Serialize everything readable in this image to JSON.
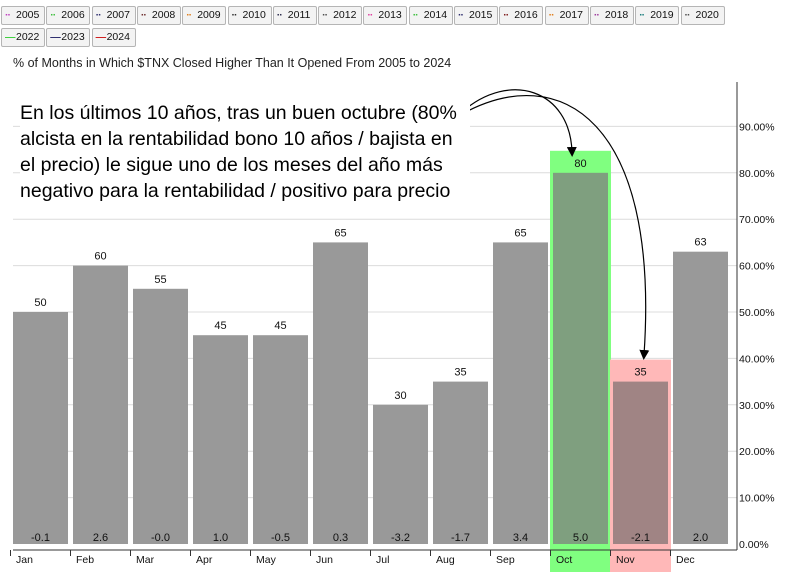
{
  "legend": [
    {
      "label": "2005",
      "color": "#c040c0"
    },
    {
      "label": "2006",
      "color": "#40c040"
    },
    {
      "label": "2007",
      "color": "#303070"
    },
    {
      "label": "2008",
      "color": "#703030"
    },
    {
      "label": "2009",
      "color": "#e08020"
    },
    {
      "label": "2010",
      "color": "#303030"
    },
    {
      "label": "2011",
      "color": "#303050"
    },
    {
      "label": "2012",
      "color": "#505050"
    },
    {
      "label": "2013",
      "color": "#e040a0"
    },
    {
      "label": "2014",
      "color": "#40c040"
    },
    {
      "label": "2015",
      "color": "#303070"
    },
    {
      "label": "2016",
      "color": "#802020"
    },
    {
      "label": "2017",
      "color": "#e08020"
    },
    {
      "label": "2018",
      "color": "#a040a0"
    },
    {
      "label": "2019",
      "color": "#208080"
    },
    {
      "label": "2020",
      "color": "#505050"
    },
    {
      "label": "2021",
      "color": "#c000c0"
    },
    {
      "label": "2022",
      "color": "#40d040"
    },
    {
      "label": "2023",
      "color": "#303070"
    },
    {
      "label": "2024",
      "color": "#d02020"
    }
  ],
  "annotation": "En los últimos 10 años, tras un buen octubre (80% alcista en la rentabilidad bono 10 años / bajista en el precio) le sigue uno de los meses del año más negativo para la rentabilidad / positivo para precio",
  "chart_data": {
    "type": "bar",
    "title": "% of Months in Which $TNX Closed Higher Than It Opened From 2005 to 2024",
    "categories": [
      "Jan",
      "Feb",
      "Mar",
      "Apr",
      "May",
      "Jun",
      "Jul",
      "Aug",
      "Sep",
      "Oct",
      "Nov",
      "Dec"
    ],
    "values": [
      50,
      60,
      55,
      45,
      45,
      65,
      30,
      35,
      65,
      80,
      35,
      63
    ],
    "avg_returns": [
      "-0.1",
      "2.6",
      "-0.0",
      "1.0",
      "-0.5",
      "0.3",
      "-3.2",
      "-1.7",
      "3.4",
      "5.0",
      "-2.1",
      "2.0"
    ],
    "ylim": [
      0,
      100
    ],
    "y_ticks": [
      "0.00%",
      "10.00%",
      "20.00%",
      "30.00%",
      "40.00%",
      "50.00%",
      "60.00%",
      "70.00%",
      "80.00%",
      "90.00%"
    ],
    "y_axis_position": "right",
    "grid": true,
    "bar_color": "#999999",
    "highlights": [
      {
        "category": "Oct",
        "color": "#80ff80",
        "bar_color": "#7f9f7f"
      },
      {
        "category": "Nov",
        "color": "#ffb8b8",
        "bar_color": "#a08484"
      }
    ]
  }
}
